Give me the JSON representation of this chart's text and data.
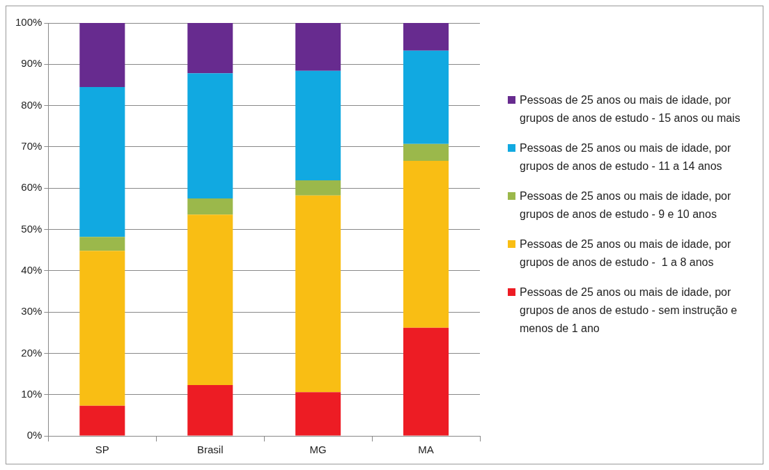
{
  "chart_data": {
    "type": "bar",
    "stacked": true,
    "categories": [
      "SP",
      "Brasil",
      "MG",
      "MA"
    ],
    "series": [
      {
        "name": "Pessoas de 25 anos ou mais de idade, por grupos de anos de estudo - sem instrução e menos de 1 ano",
        "color": "#ed1c24",
        "values": [
          7.3,
          12.3,
          10.6,
          26.2
        ]
      },
      {
        "name": "Pessoas de 25 anos ou mais de idade, por grupos de anos de estudo -  1 a 8 anos",
        "color": "#f9be14",
        "values": [
          37.5,
          41.3,
          47.6,
          40.4
        ]
      },
      {
        "name": "Pessoas de 25 anos ou mais de idade, por grupos de anos de estudo - 9 e 10 anos",
        "color": "#9bb84b",
        "values": [
          3.4,
          3.9,
          3.7,
          4.1
        ]
      },
      {
        "name": "Pessoas de 25 anos ou mais de idade, por grupos de anos de estudo - 11 a 14 anos",
        "color": "#11a9e1",
        "values": [
          36.3,
          30.3,
          26.5,
          22.6
        ]
      },
      {
        "name": "Pessoas de 25 anos ou mais de idade, por grupos de anos de estudo - 15 anos ou mais",
        "color": "#672b8f",
        "values": [
          15.5,
          12.2,
          11.6,
          6.7
        ]
      }
    ],
    "ylim": [
      0,
      100
    ],
    "yticks": [
      {
        "value": 0,
        "label": "0%"
      },
      {
        "value": 10,
        "label": "10%"
      },
      {
        "value": 20,
        "label": "20%"
      },
      {
        "value": 30,
        "label": "30%"
      },
      {
        "value": 40,
        "label": "40%"
      },
      {
        "value": 50,
        "label": "50%"
      },
      {
        "value": 60,
        "label": "60%"
      },
      {
        "value": 70,
        "label": "70%"
      },
      {
        "value": 80,
        "label": "80%"
      },
      {
        "value": 90,
        "label": "90%"
      },
      {
        "value": 100,
        "label": "100%"
      }
    ],
    "grid": "y",
    "legend": "right"
  }
}
